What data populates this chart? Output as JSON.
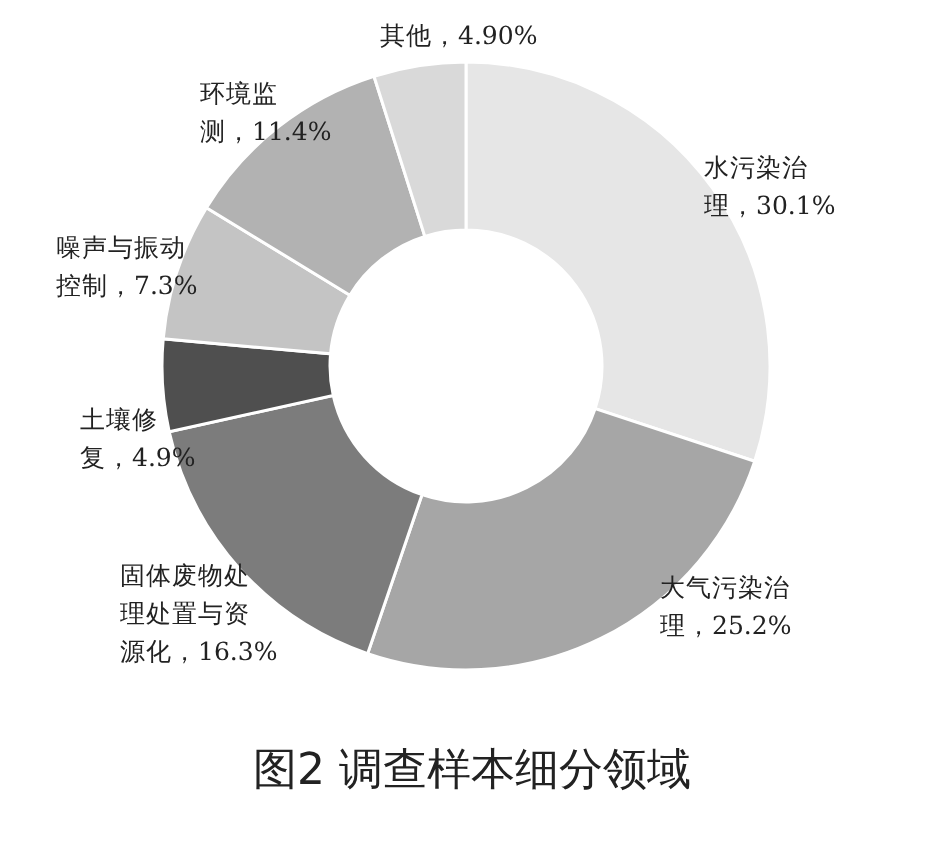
{
  "chart_data": {
    "type": "donut",
    "title": "图2 调查样本细分领域",
    "categories": [
      "水污染治理",
      "大气污染治理",
      "固体废物处理处置与资源化",
      "土壤修复",
      "噪声与振动控制",
      "环境监测",
      "其他"
    ],
    "values": [
      30.1,
      25.2,
      16.3,
      4.9,
      7.3,
      11.4,
      4.9
    ],
    "value_labels": [
      "30.1%",
      "25.2%",
      "16.3%",
      "4.9%",
      "7.3%",
      "11.4%",
      "4.90%"
    ],
    "colors": [
      "#e6e6e6",
      "#a6a6a6",
      "#7c7c7c",
      "#4f4f4f",
      "#c4c4c4",
      "#b2b2b2",
      "#d9d9d9"
    ]
  }
}
